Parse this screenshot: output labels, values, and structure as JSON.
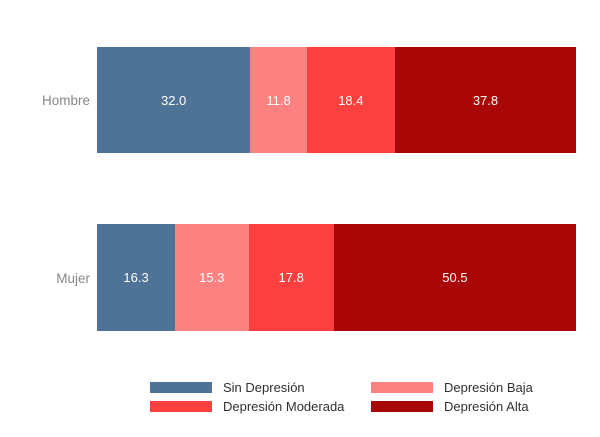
{
  "chart_data": {
    "type": "bar",
    "orientation": "horizontal",
    "stacked": true,
    "stack_total": 100,
    "grid": false,
    "axes_visible": false,
    "value_labels": "white, centered in each segment, one decimal",
    "legend_position": "bottom, two columns",
    "categories": [
      "Hombre",
      "Mujer"
    ],
    "series": [
      {
        "name": "Sin Depresión",
        "color": "#4F7396",
        "values": [
          32.0,
          16.3
        ]
      },
      {
        "name": "Depresión Baja",
        "color": "#FB8281",
        "values": [
          11.8,
          15.3
        ]
      },
      {
        "name": "Depresión Moderada",
        "color": "#FC403F",
        "values": [
          18.4,
          17.8
        ]
      },
      {
        "name": "Depresión Alta",
        "color": "#A90707",
        "values": [
          37.8,
          50.5
        ]
      }
    ],
    "category_label_color": "#878787",
    "value_label_color": "#ffffff",
    "legend_text_color": "#303030",
    "background_color": "#ffffff"
  }
}
